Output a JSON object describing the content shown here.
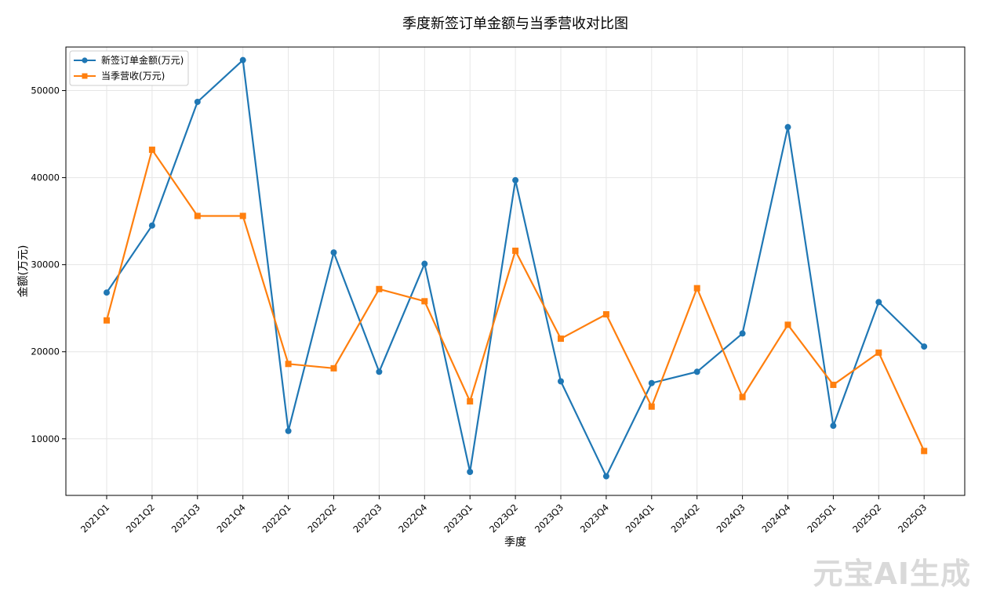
{
  "chart_data": {
    "type": "line",
    "title": "季度新签订单金额与当季营收对比图",
    "xlabel": "季度",
    "ylabel": "金额(万元)",
    "categories": [
      "2021Q1",
      "2021Q2",
      "2021Q3",
      "2021Q4",
      "2022Q1",
      "2022Q2",
      "2022Q3",
      "2022Q4",
      "2023Q1",
      "2023Q2",
      "2023Q3",
      "2023Q4",
      "2024Q1",
      "2024Q2",
      "2024Q3",
      "2024Q4",
      "2025Q1",
      "2025Q2",
      "2025Q3"
    ],
    "ylim": [
      3500,
      55000
    ],
    "yticks": [
      10000,
      20000,
      30000,
      40000,
      50000
    ],
    "grid": true,
    "legend_position": "top-left",
    "series": [
      {
        "name": "新签订单金额(万元)",
        "color": "#1f77b4",
        "marker": "circle",
        "values": [
          26800,
          34500,
          48700,
          53500,
          10900,
          31400,
          17700,
          30100,
          6200,
          39700,
          16600,
          5700,
          16400,
          17700,
          22100,
          45800,
          11500,
          25700,
          20600
        ]
      },
      {
        "name": "当季营收(万元)",
        "color": "#ff7f0e",
        "marker": "square",
        "values": [
          23600,
          43200,
          35600,
          35600,
          18600,
          18100,
          27200,
          25800,
          14300,
          31600,
          21500,
          24300,
          13700,
          27300,
          14800,
          23100,
          16200,
          19900,
          8600
        ]
      }
    ]
  },
  "watermark": "元宝AI生成"
}
